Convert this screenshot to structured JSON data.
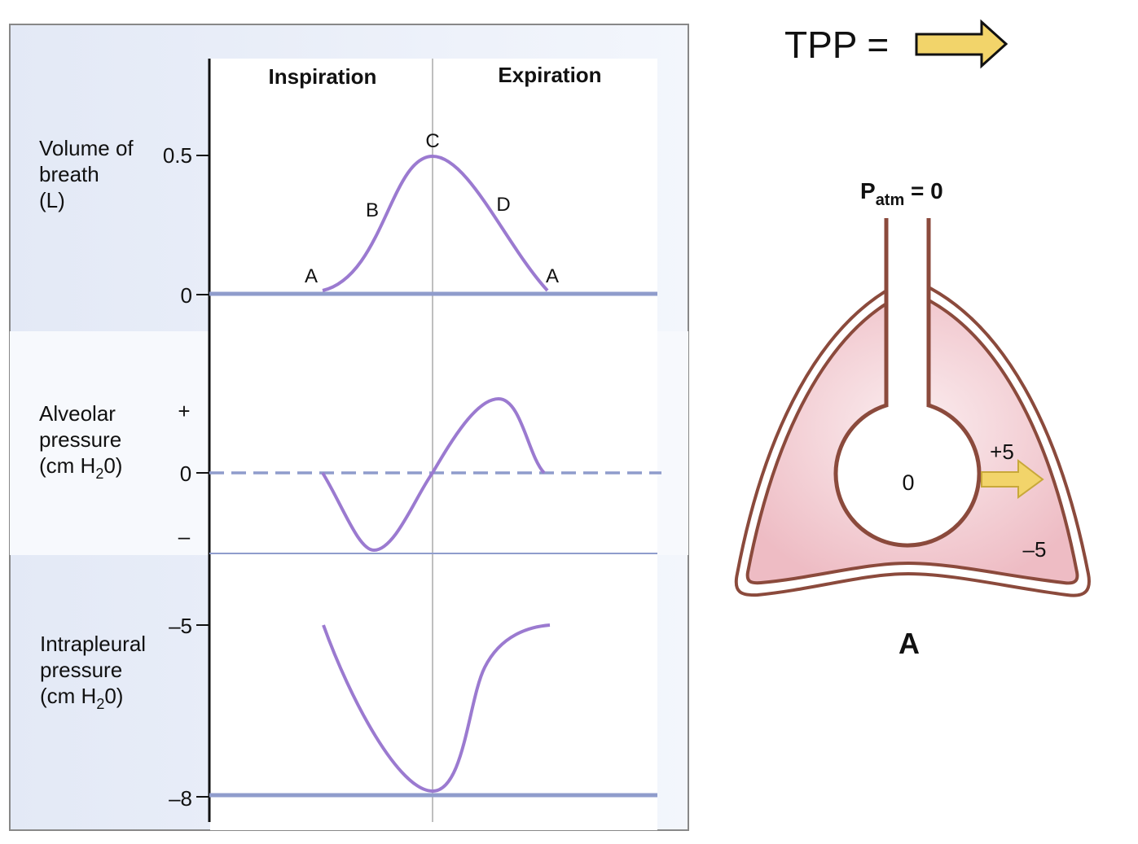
{
  "header": {
    "tpp_label": "TPP ="
  },
  "graph": {
    "column_headers": {
      "inspiration": "Inspiration",
      "expiration": "Expiration"
    },
    "panels": [
      {
        "id": "volume",
        "label_lines": [
          "Volume of",
          "breath",
          "(L)"
        ],
        "ticks": [
          "0.5",
          "0"
        ],
        "point_labels": [
          "A",
          "B",
          "C",
          "D",
          "A"
        ]
      },
      {
        "id": "alveolar",
        "label_lines": [
          "Alveolar",
          "pressure",
          "(cm H",
          "2",
          "0)"
        ],
        "ticks": [
          "+",
          "0",
          "–"
        ]
      },
      {
        "id": "intrapleural",
        "label_lines": [
          "Intrapleural",
          "pressure",
          "(cm H",
          "2",
          "0)"
        ],
        "ticks": [
          "–5",
          "–8"
        ]
      }
    ]
  },
  "lung_diagram": {
    "patm_p": "P",
    "patm_sub": "atm",
    "patm_eq": " = 0",
    "alveolar_value": "0",
    "arrow_value": "+5",
    "intrapleural_value": "–5",
    "panel_letter": "A"
  },
  "colors": {
    "curve": "#9b7ad0",
    "baseline": "#8f9ccc",
    "panel_bg": "#e6ebf7",
    "lung_fill": "#f2c6cc",
    "lung_stroke": "#8b4a3c",
    "arrow_fill": "#f2d46a"
  }
}
